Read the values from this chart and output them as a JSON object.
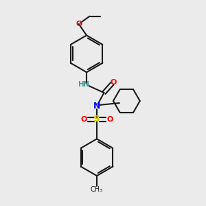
{
  "background_color": "#ebebeb",
  "bond_color": "#1a1a1a",
  "n_color": "#0000ff",
  "o_color": "#ff0000",
  "s_color": "#cccc00",
  "nh_color": "#4d9999",
  "line_width": 1.5,
  "figsize": [
    3.0,
    3.0
  ],
  "dpi": 100,
  "xlim": [
    0,
    10
  ],
  "ylim": [
    0,
    10
  ]
}
